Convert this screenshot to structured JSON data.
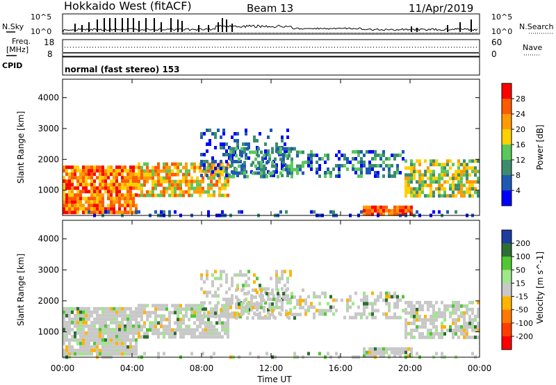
{
  "header": {
    "title": "Hokkaido West (fitACF)",
    "beam": "Beam 13",
    "date": "11/Apr/2019"
  },
  "top_panels": {
    "nsky_label": "N.Sky",
    "nsky_ticks": [
      "10^5",
      "10^0"
    ],
    "nsearch_label": "N.Search",
    "nsearch_ticks": [
      "10^5",
      "10^0"
    ],
    "freq_label": "Freq.",
    "freq_unit": "[MHz]",
    "freq_ticks": [
      "18",
      "8"
    ],
    "nave_label": "Nave",
    "nave_ticks": [
      "60",
      "0"
    ],
    "cpid_label": "CPID",
    "cpid_text": "normal (fast stereo) 153"
  },
  "chart_data": [
    {
      "type": "heatmap",
      "name": "power",
      "ylabel": "Slant Range [km]",
      "yticks": [
        "4000",
        "3000",
        "2000",
        "1000"
      ],
      "ytick_values": [
        4000,
        3000,
        2000,
        1000
      ],
      "ylim": [
        180,
        4600
      ],
      "colorbar": {
        "label": "Power [dB]",
        "ticks": [
          "28",
          "24",
          "20",
          "16",
          "12",
          "8",
          "4"
        ],
        "colors": [
          "#ff0000",
          "#ff5a00",
          "#ff9a00",
          "#ffd000",
          "#5ac85a",
          "#3c8c6e",
          "#1e5ab4",
          "#0000ff"
        ]
      }
    },
    {
      "type": "heatmap",
      "name": "velocity",
      "ylabel": "Slant Range [km]",
      "yticks": [
        "4000",
        "3000",
        "2000",
        "1000"
      ],
      "ytick_values": [
        4000,
        3000,
        2000,
        1000
      ],
      "ylim": [
        180,
        4600
      ],
      "xlabel": "Time UT",
      "xticks": [
        "00:00",
        "04:00",
        "08:00",
        "12:00",
        "16:00",
        "20:00",
        "00:00"
      ],
      "colorbar": {
        "label": "Velocity [m s^-1]",
        "ticks": [
          "200",
          "100",
          "50",
          "15",
          "-15",
          "-50",
          "-100",
          "-200"
        ],
        "colors": [
          "#1e3ca0",
          "#2d6e32",
          "#50c832",
          "#a0e68c",
          "#c8c8c8",
          "#ffb400",
          "#ff7800",
          "#ff3c00",
          "#ff0000"
        ]
      }
    }
  ]
}
